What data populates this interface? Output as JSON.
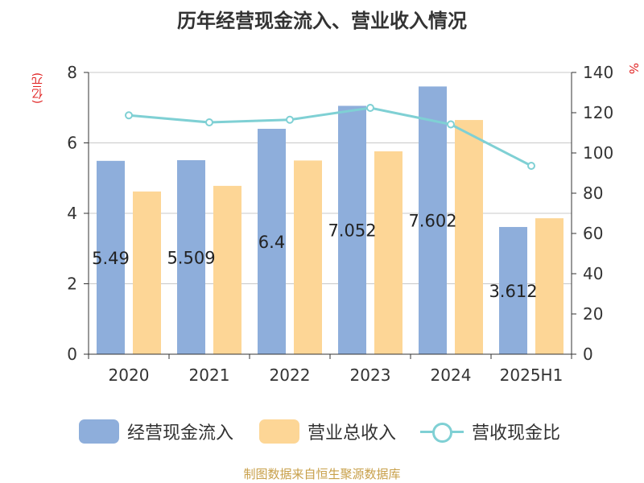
{
  "chart_data": {
    "type": "bar",
    "title": "历年经营现金流入、营业收入情况",
    "ylabel": "(亿元)",
    "y2label": "%",
    "categories": [
      "2020",
      "2021",
      "2022",
      "2023",
      "2024",
      "2025H1"
    ],
    "ylim": [
      0,
      8
    ],
    "y_ticks": [
      "0",
      "2",
      "4",
      "6",
      "8"
    ],
    "y2lim": [
      0,
      140
    ],
    "y2_ticks": [
      "0",
      "20",
      "40",
      "60",
      "80",
      "100",
      "120",
      "140"
    ],
    "series": [
      {
        "name": "经营现金流入",
        "type": "bar",
        "axis": "left",
        "color": "#8eaedb",
        "values": [
          5.49,
          5.509,
          6.4,
          7.052,
          7.602,
          3.612
        ],
        "labels": [
          "5.49",
          "5.509",
          "6.4",
          "7.052",
          "7.602",
          "3.612"
        ]
      },
      {
        "name": "营业总收入",
        "type": "bar",
        "axis": "left",
        "color": "#fdd696",
        "values": [
          4.62,
          4.78,
          5.5,
          5.76,
          6.65,
          3.86
        ]
      },
      {
        "name": "营收现金比",
        "type": "line",
        "axis": "right",
        "color": "#7fd0d4",
        "values": [
          118.7,
          115.2,
          116.5,
          122.4,
          114.2,
          93.6
        ]
      }
    ],
    "grid": true,
    "legend_position": "bottom"
  },
  "footer": {
    "source": "制图数据来自恒生聚源数据库"
  }
}
